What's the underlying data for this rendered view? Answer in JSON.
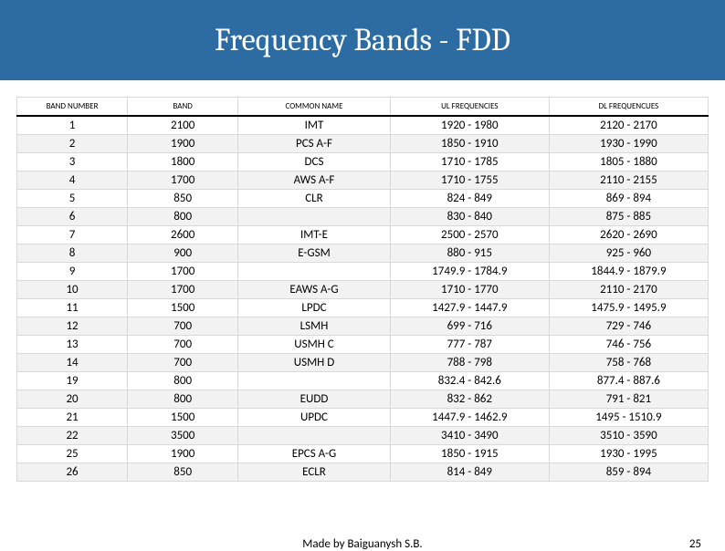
{
  "title": "Frequency Bands - FDD",
  "footer": {
    "credit": "Made by Baiguanysh S.B.",
    "page": "25"
  },
  "table": {
    "columns": [
      "BAND NUMBER",
      "BAND",
      "COMMON NAME",
      "UL FREQUENCIES",
      "DL FREQUENCUES"
    ],
    "rows": [
      [
        "1",
        "2100",
        "IMT",
        "1920 - 1980",
        "2120 - 2170"
      ],
      [
        "2",
        "1900",
        "PCS A-F",
        "1850 - 1910",
        "1930 - 1990"
      ],
      [
        "3",
        "1800",
        "DCS",
        "1710 - 1785",
        "1805 - 1880"
      ],
      [
        "4",
        "1700",
        "AWS A-F",
        "1710 - 1755",
        "2110 - 2155"
      ],
      [
        "5",
        "850",
        "CLR",
        "824 - 849",
        "869 - 894"
      ],
      [
        "6",
        "800",
        "",
        "830 - 840",
        "875 - 885"
      ],
      [
        "7",
        "2600",
        "IMT-E",
        "2500 - 2570",
        "2620 - 2690"
      ],
      [
        "8",
        "900",
        "E-GSM",
        "880 - 915",
        "925 - 960"
      ],
      [
        "9",
        "1700",
        "",
        "1749.9 - 1784.9",
        "1844.9 - 1879.9"
      ],
      [
        "10",
        "1700",
        "EAWS A-G",
        "1710 - 1770",
        "2110 - 2170"
      ],
      [
        "11",
        "1500",
        "LPDC",
        "1427.9 - 1447.9",
        "1475.9 - 1495.9"
      ],
      [
        "12",
        "700",
        "LSMH",
        "699 - 716",
        "729 - 746"
      ],
      [
        "13",
        "700",
        "USMH C",
        "777 - 787",
        "746 - 756"
      ],
      [
        "14",
        "700",
        "USMH D",
        "788 - 798",
        "758 - 768"
      ],
      [
        "19",
        "800",
        "",
        "832.4 - 842.6",
        "877.4 - 887.6"
      ],
      [
        "20",
        "800",
        "EUDD",
        "832 - 862",
        "791 - 821"
      ],
      [
        "21",
        "1500",
        "UPDC",
        "1447.9 - 1462.9",
        "1495 - 1510.9"
      ],
      [
        "22",
        "3500",
        "",
        "3410 - 3490",
        "3510 - 3590"
      ],
      [
        "25",
        "1900",
        "EPCS A-G",
        "1850 - 1915",
        "1930 - 1995"
      ],
      [
        "26",
        "850",
        "ECLR",
        "814 - 849",
        "859 - 894"
      ]
    ]
  }
}
